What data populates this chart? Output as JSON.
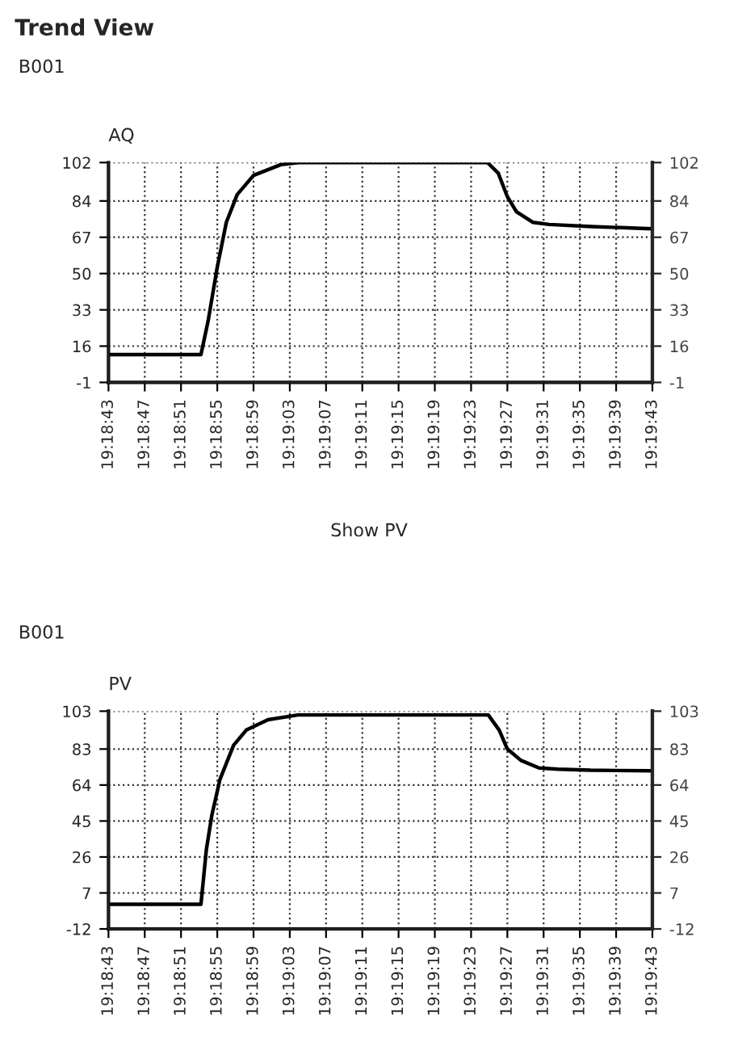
{
  "chart_data": [
    {
      "type": "line",
      "annotations": [
        "Trend View",
        "B001",
        "Show PV"
      ],
      "ylabel": "AQ",
      "x": [
        69523,
        69533.2,
        69534,
        69535,
        69536,
        69537.2,
        69539,
        69542,
        69544,
        69564.8,
        69566,
        69567,
        69568,
        69569.8,
        69571.6,
        69576.3,
        69583
      ],
      "series": [
        {
          "color": "#000000",
          "values": [
            12,
            12,
            28,
            53,
            74,
            87,
            96,
            101,
            102,
            102,
            97,
            86,
            79,
            74,
            73,
            72,
            71
          ]
        }
      ],
      "xlim": [
        69523,
        69583
      ],
      "xticks": [
        {
          "value": 69523,
          "label": "19:18:43"
        },
        {
          "value": 69527,
          "label": "19:18:47"
        },
        {
          "value": 69531,
          "label": "19:18:51"
        },
        {
          "value": 69535,
          "label": "19:18:55"
        },
        {
          "value": 69539,
          "label": "19:18:59"
        },
        {
          "value": 69543,
          "label": "19:19:03"
        },
        {
          "value": 69547,
          "label": "19:19:07"
        },
        {
          "value": 69551,
          "label": "19:19:11"
        },
        {
          "value": 69555,
          "label": "19:19:15"
        },
        {
          "value": 69559,
          "label": "19:19:19"
        },
        {
          "value": 69563,
          "label": "19:19:23"
        },
        {
          "value": 69567,
          "label": "19:19:27"
        },
        {
          "value": 69571,
          "label": "19:19:31"
        },
        {
          "value": 69575,
          "label": "19:19:35"
        },
        {
          "value": 69579,
          "label": "19:19:39"
        },
        {
          "value": 69583,
          "label": "19:19:43"
        }
      ],
      "ylim": [
        -1,
        102
      ],
      "yticks": [
        -1,
        16,
        33,
        50,
        67,
        84,
        102
      ],
      "y2lim": [
        -1,
        102
      ],
      "y2ticks": [
        -1,
        16,
        33,
        50,
        67,
        84,
        102
      ],
      "grid": true,
      "line_style": "solid",
      "marker": "none"
    },
    {
      "type": "line",
      "annotations": [
        "B001"
      ],
      "ylabel": "PV",
      "x": [
        69523,
        69533.2,
        69533.8,
        69534.4,
        69535.3,
        69536.8,
        69538.2,
        69540.6,
        69543.9,
        69564.9,
        69566.1,
        69567,
        69568.5,
        69570.5,
        69572.6,
        69576.2,
        69583
      ],
      "series": [
        {
          "color": "#000000",
          "values": [
            1,
            1,
            30,
            48,
            67,
            85,
            93,
            98.5,
            101,
            101,
            93,
            83,
            77,
            73,
            72.4,
            71.8,
            71.5
          ]
        }
      ],
      "xlim": [
        69523,
        69583
      ],
      "xticks": [
        {
          "value": 69523,
          "label": "19:18:43"
        },
        {
          "value": 69527,
          "label": "19:18:47"
        },
        {
          "value": 69531,
          "label": "19:18:51"
        },
        {
          "value": 69535,
          "label": "19:18:55"
        },
        {
          "value": 69539,
          "label": "19:18:59"
        },
        {
          "value": 69543,
          "label": "19:19:03"
        },
        {
          "value": 69547,
          "label": "19:19:07"
        },
        {
          "value": 69551,
          "label": "19:19:11"
        },
        {
          "value": 69555,
          "label": "19:19:15"
        },
        {
          "value": 69559,
          "label": "19:19:19"
        },
        {
          "value": 69563,
          "label": "19:19:23"
        },
        {
          "value": 69567,
          "label": "19:19:27"
        },
        {
          "value": 69571,
          "label": "19:19:31"
        },
        {
          "value": 69575,
          "label": "19:19:35"
        },
        {
          "value": 69579,
          "label": "19:19:39"
        },
        {
          "value": 69583,
          "label": "19:19:43"
        }
      ],
      "ylim": [
        -12,
        103
      ],
      "yticks": [
        -12,
        7,
        26,
        45,
        64,
        83,
        103
      ],
      "y2lim": [
        -12,
        103
      ],
      "y2ticks": [
        -12,
        7,
        26,
        45,
        64,
        83,
        103
      ],
      "grid": true,
      "line_style": "solid",
      "marker": "none"
    }
  ]
}
